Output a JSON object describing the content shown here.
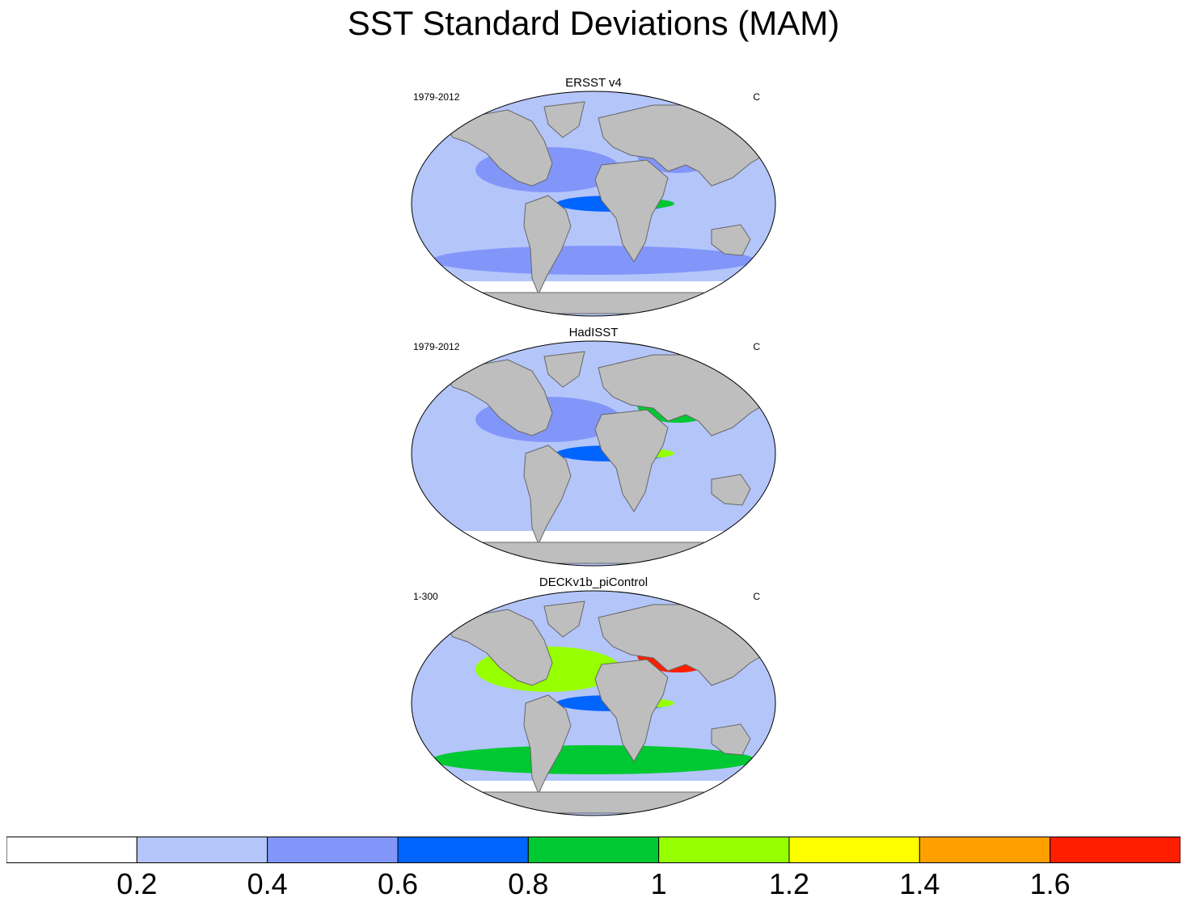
{
  "title": "SST Standard Deviations (MAM)",
  "panels": [
    {
      "title": "ERSST v4",
      "period": "1979-2012",
      "units": "C",
      "intensity": {
        "equatorial_pacific": 0.8,
        "north_pacific": 0.5,
        "north_atlantic": 0.5,
        "southern_ocean": 0.4
      }
    },
    {
      "title": "HadISST",
      "period": "1979-2012",
      "units": "C",
      "intensity": {
        "equatorial_pacific": 1.0,
        "north_pacific": 0.5,
        "north_atlantic": 0.9,
        "southern_ocean": 0.3
      }
    },
    {
      "title": "DECKv1b_piControl",
      "period": "1-300",
      "units": "C",
      "intensity": {
        "equatorial_pacific": 1.0,
        "north_pacific": 1.1,
        "north_atlantic": 1.7,
        "southern_ocean": 0.9
      }
    }
  ],
  "colorbar": {
    "colors": [
      "#ffffff",
      "#b4c5fa",
      "#8296fa",
      "#0064ff",
      "#00c832",
      "#96ff00",
      "#ffff00",
      "#ffa000",
      "#ff1e00"
    ],
    "labels": [
      "0.2",
      "0.4",
      "0.6",
      "0.8",
      "1",
      "1.2",
      "1.4",
      "1.6"
    ]
  },
  "land_color": "#bebebe"
}
